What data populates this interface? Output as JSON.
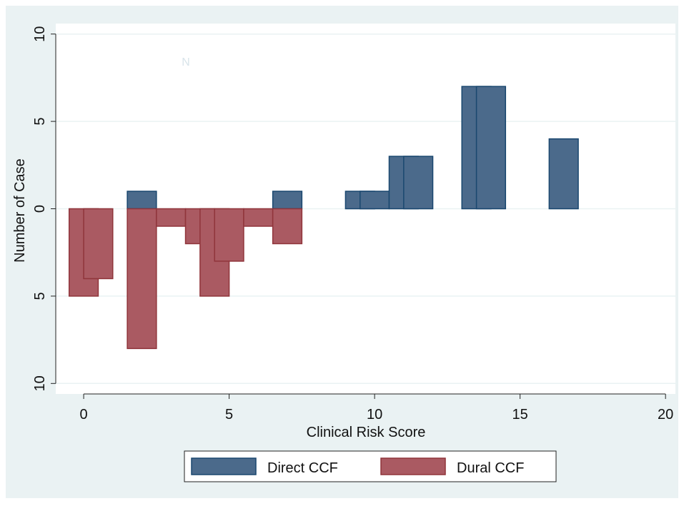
{
  "chart_data": {
    "type": "bar",
    "xlabel": "Clinical Risk Score",
    "ylabel": "Number of Case",
    "annotation": "N",
    "bar_width": 1,
    "xlim": [
      -0.96,
      20.34
    ],
    "xticks": [
      0,
      5,
      10,
      15,
      20
    ],
    "ylim": [
      -10.6,
      10.6
    ],
    "yticks": [
      {
        "value": -10,
        "label": "10"
      },
      {
        "value": -5,
        "label": "5"
      },
      0,
      5,
      10
    ],
    "grid": true,
    "series": [
      {
        "name": "Direct CCF",
        "color": "#4b6a8b",
        "edge": "#1a476f",
        "x": [
          2,
          7,
          9.5,
          10,
          11,
          11.5,
          13.5,
          14,
          16.5
        ],
        "values": [
          1,
          1,
          1,
          1,
          3,
          3,
          7,
          7,
          4
        ]
      },
      {
        "name": "Dural CCF",
        "color": "#aa5a62",
        "edge": "#90353b",
        "x": [
          0,
          0.5,
          2,
          3,
          4,
          4.5,
          5,
          6,
          7
        ],
        "values": [
          -5,
          -4,
          -8,
          -1,
          -2,
          -5,
          -3,
          -1,
          -2
        ]
      }
    ]
  }
}
